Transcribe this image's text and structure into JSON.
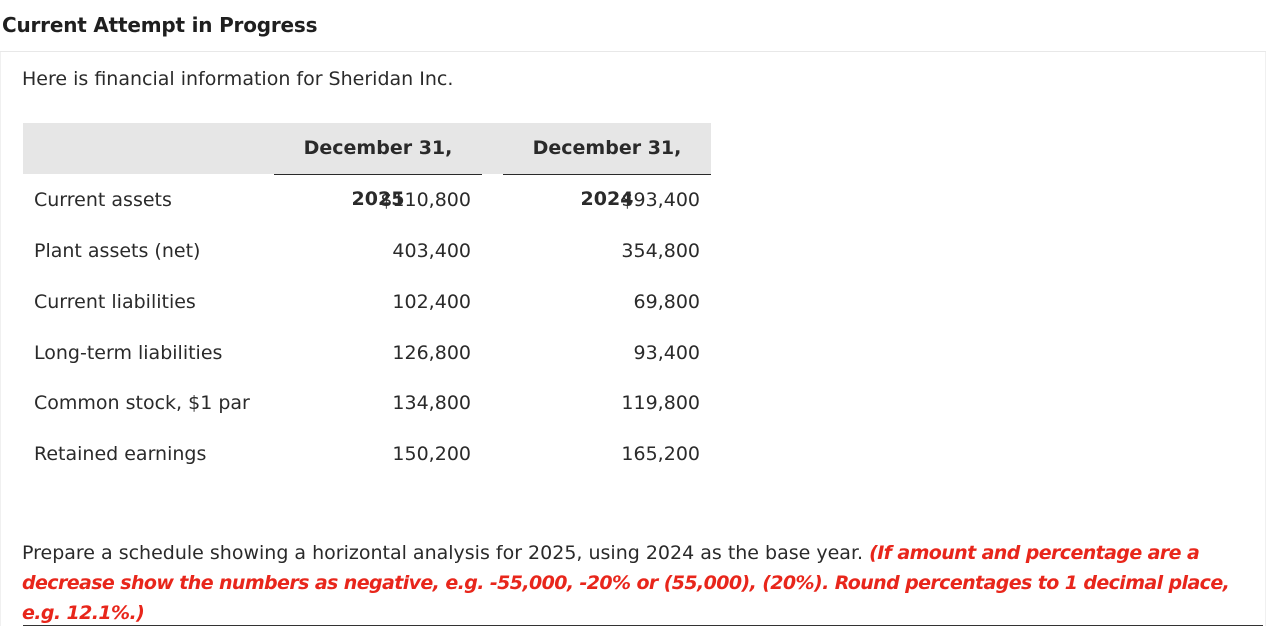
{
  "header": {
    "title": "Current Attempt in Progress"
  },
  "intro": "Here is financial information for Sheridan Inc.",
  "table": {
    "columns": [
      "December 31, 2025",
      "December 31, 2024"
    ],
    "rows": [
      {
        "label": "Current assets",
        "v2025": "$110,800",
        "v2024": "$93,400"
      },
      {
        "label": "Plant assets (net)",
        "v2025": "403,400",
        "v2024": "354,800"
      },
      {
        "label": "Current liabilities",
        "v2025": "102,400",
        "v2024": "69,800"
      },
      {
        "label": "Long-term liabilities",
        "v2025": "126,800",
        "v2024": "93,400"
      },
      {
        "label": "Common stock, $1 par",
        "v2025": "134,800",
        "v2024": "119,800"
      },
      {
        "label": "Retained earnings",
        "v2025": "150,200",
        "v2024": "165,200"
      }
    ]
  },
  "instructions": {
    "text": "Prepare a schedule showing a horizontal analysis for 2025, using 2024 as the base year.",
    "hint": "(If amount and percentage are a decrease show the numbers as negative, e.g. -55,000, -20% or (55,000), (20%). Round percentages to 1 decimal place, e.g. 12.1%.)"
  },
  "colors": {
    "hint": "#e8261b",
    "table_header_bg": "#e6e6e6",
    "text": "#2a2a2a"
  }
}
